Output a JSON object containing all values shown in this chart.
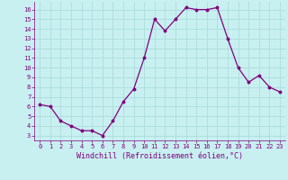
{
  "x": [
    0,
    1,
    2,
    3,
    4,
    5,
    6,
    7,
    8,
    9,
    10,
    11,
    12,
    13,
    14,
    15,
    16,
    17,
    18,
    19,
    20,
    21,
    22,
    23
  ],
  "y": [
    6.2,
    6.0,
    4.5,
    4.0,
    3.5,
    3.5,
    3.0,
    4.5,
    6.5,
    7.8,
    11.0,
    15.0,
    13.8,
    15.0,
    16.2,
    16.0,
    16.0,
    16.2,
    13.0,
    10.0,
    8.5,
    9.2,
    8.0,
    7.5
  ],
  "line_color": "#800080",
  "marker": "o",
  "marker_size": 1.8,
  "linewidth": 0.9,
  "xlabel": "Windchill (Refroidissement éolien,°C)",
  "xlim": [
    -0.5,
    23.5
  ],
  "ylim": [
    2.5,
    16.8
  ],
  "yticks": [
    3,
    4,
    5,
    6,
    7,
    8,
    9,
    10,
    11,
    12,
    13,
    14,
    15,
    16
  ],
  "xticks": [
    0,
    1,
    2,
    3,
    4,
    5,
    6,
    7,
    8,
    9,
    10,
    11,
    12,
    13,
    14,
    15,
    16,
    17,
    18,
    19,
    20,
    21,
    22,
    23
  ],
  "xtick_labels": [
    "0",
    "1",
    "2",
    "3",
    "4",
    "5",
    "6",
    "7",
    "8",
    "9",
    "10",
    "11",
    "12",
    "13",
    "14",
    "15",
    "16",
    "17",
    "18",
    "19",
    "20",
    "21",
    "22",
    "23"
  ],
  "background_color": "#c8f0f0",
  "grid_color": "#a8d8d8",
  "line_border_color": "#800080",
  "tick_label_color": "#800080",
  "xlabel_color": "#800080",
  "tick_fontsize": 5.0,
  "xlabel_fontsize": 6.0,
  "font_family": "monospace"
}
